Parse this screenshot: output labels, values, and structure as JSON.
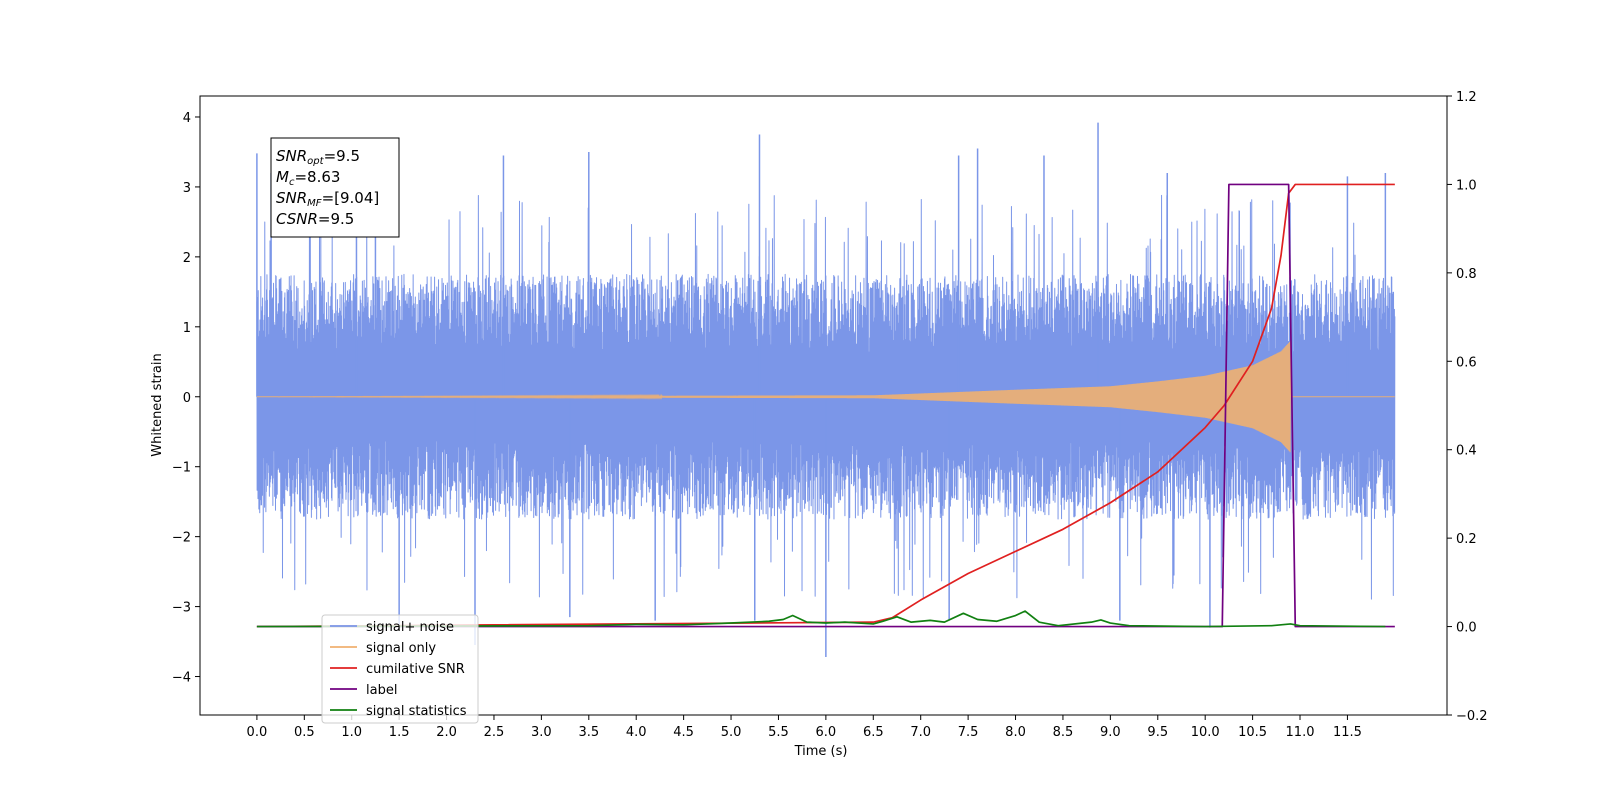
{
  "chart_data": {
    "type": "line",
    "xlabel": "Time (s)",
    "ylabel_left": "Whitened strain",
    "ylabel_right": "",
    "xlim": [
      -0.6,
      12.55
    ],
    "ylim_left": [
      -4.55,
      4.3
    ],
    "ylim_right": [
      -0.2,
      1.2
    ],
    "x_ticks": [
      0.0,
      0.5,
      1.0,
      1.5,
      2.0,
      2.5,
      3.0,
      3.5,
      4.0,
      4.5,
      5.0,
      5.5,
      6.0,
      6.5,
      7.0,
      7.5,
      8.0,
      8.5,
      9.0,
      9.5,
      10.0,
      10.5,
      11.0,
      11.5
    ],
    "x_tick_labels": [
      "0.0",
      "0.5",
      "1.0",
      "1.5",
      "2.0",
      "2.5",
      "3.0",
      "3.5",
      "4.0",
      "4.5",
      "5.0",
      "5.5",
      "6.0",
      "6.5",
      "7.0",
      "7.5",
      "8.0",
      "8.5",
      "9.0",
      "9.5",
      "10.0",
      "10.5",
      "11.0",
      "11.5"
    ],
    "y_ticks_left": [
      4,
      3,
      2,
      1,
      0,
      -1,
      -2,
      -3,
      -4
    ],
    "y_tick_labels_left": [
      "4",
      "3",
      "2",
      "1",
      "0",
      "−1",
      "−2",
      "−3",
      "−4"
    ],
    "y_ticks_right": [
      1.2,
      1.0,
      0.8,
      0.6,
      0.4,
      0.2,
      0.0,
      -0.2
    ],
    "y_tick_labels_right": [
      "1.2",
      "1.0",
      "0.8",
      "0.6",
      "0.4",
      "0.2",
      "0.0",
      "−0.2"
    ],
    "grid": false,
    "legend_position": "lower-left",
    "annotation": [
      {
        "main": "SNR",
        "sub": "opt",
        "rest": "=9.5"
      },
      {
        "main": "M",
        "sub": "c",
        "rest": "=8.63"
      },
      {
        "main": "SNR",
        "sub": "MF",
        "rest": "=[9.04]"
      },
      {
        "main": "CSNR",
        "sub": "",
        "rest": "=9.5"
      }
    ],
    "series": [
      {
        "name": "signal+ noise",
        "axis": "left",
        "color": "#7b96e8",
        "kind": "noise",
        "x_range": [
          0.0,
          12.0
        ],
        "band": 1.8,
        "peak_times": [
          0.0,
          0.15,
          1.05,
          1.25,
          2.6,
          3.5,
          5.3,
          7.4,
          7.6,
          8.3,
          8.87,
          9.6,
          11.5,
          11.9
        ],
        "peak_values": [
          3.48,
          3.2,
          3.15,
          3.2,
          3.45,
          3.5,
          3.75,
          3.45,
          3.55,
          3.45,
          3.92,
          3.2,
          3.15,
          3.2
        ],
        "trough_times": [
          1.5,
          2.3,
          3.3,
          4.2,
          5.25,
          6.0,
          7.3,
          9.1,
          10.05
        ],
        "trough_values": [
          -3.3,
          -3.55,
          -3.15,
          -3.2,
          -3.2,
          -3.72,
          -3.2,
          -3.2,
          -3.3
        ]
      },
      {
        "name": "signal only",
        "axis": "left",
        "color": "#f0b070",
        "kind": "chirp",
        "x_range": [
          0.0,
          12.0
        ],
        "merger_time": 10.9,
        "envelope_times": [
          0.0,
          6.5,
          8.0,
          9.0,
          9.5,
          10.0,
          10.5,
          10.8,
          10.9
        ],
        "envelope_values": [
          0.0,
          0.02,
          0.1,
          0.15,
          0.22,
          0.3,
          0.45,
          0.65,
          0.8
        ]
      },
      {
        "name": "cumilative SNR",
        "axis": "right",
        "color": "#e02020",
        "x": [
          0.0,
          6.5,
          6.7,
          7.0,
          7.5,
          8.0,
          8.5,
          9.0,
          9.5,
          10.0,
          10.2,
          10.5,
          10.7,
          10.8,
          10.88,
          10.95,
          12.0
        ],
        "values": [
          0.0,
          0.01,
          0.02,
          0.06,
          0.12,
          0.17,
          0.22,
          0.28,
          0.35,
          0.45,
          0.5,
          0.6,
          0.72,
          0.84,
          0.98,
          1.0,
          1.0
        ]
      },
      {
        "name": "label",
        "axis": "right",
        "color": "#700080",
        "x": [
          0.0,
          10.18,
          10.25,
          10.88,
          10.95,
          12.0
        ],
        "values": [
          0.0,
          0.0,
          1.0,
          1.0,
          0.0,
          0.0
        ]
      },
      {
        "name": "signal statistics",
        "axis": "right",
        "color": "#118011",
        "x": [
          0.0,
          3.5,
          4.0,
          4.5,
          5.0,
          5.4,
          5.55,
          5.65,
          5.8,
          6.0,
          6.2,
          6.5,
          6.6,
          6.75,
          6.9,
          7.1,
          7.25,
          7.45,
          7.6,
          7.8,
          8.0,
          8.1,
          8.25,
          8.45,
          8.8,
          8.9,
          9.0,
          9.2,
          10.0,
          10.7,
          10.9,
          11.0,
          11.9
        ],
        "values": [
          0.0,
          0.002,
          0.005,
          0.004,
          0.008,
          0.012,
          0.016,
          0.025,
          0.01,
          0.008,
          0.01,
          0.006,
          0.012,
          0.022,
          0.01,
          0.014,
          0.01,
          0.03,
          0.016,
          0.012,
          0.025,
          0.035,
          0.01,
          0.002,
          0.01,
          0.015,
          0.008,
          0.002,
          0.0,
          0.002,
          0.006,
          0.002,
          0.0
        ]
      }
    ]
  }
}
